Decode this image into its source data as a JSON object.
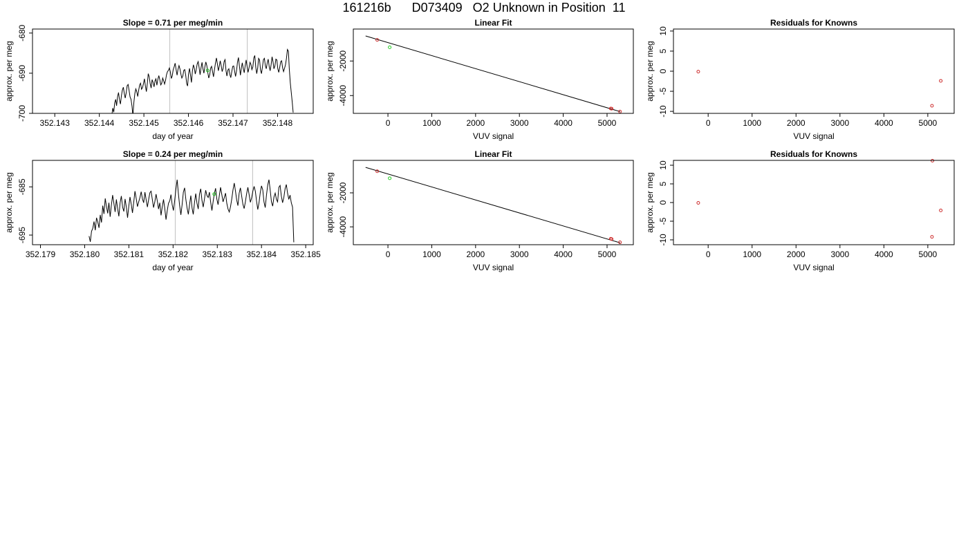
{
  "title": "161216b      D073409   O2 Unknown in Position  11",
  "chart_data": [
    {
      "type": "line",
      "title": "Slope =  0.71  per meg/min",
      "xlabel": "day of year",
      "ylabel": "approx. per meg",
      "xlim": [
        352.1425,
        352.1488
      ],
      "ylim": [
        -700,
        -679
      ],
      "xticks": [
        "352.143",
        "352.144",
        "352.145",
        "352.146",
        "352.147",
        "352.148"
      ],
      "yticks": [
        "-700",
        "-690",
        "-680"
      ],
      "vlines": [
        352.14558,
        352.14732
      ],
      "trace": {
        "x_start": 352.14428,
        "x_end": 352.14835,
        "values": [
          -700.5,
          -698.7,
          -699.7,
          -697.4,
          -696.5,
          -698.1,
          -695.9,
          -694.8,
          -696.6,
          -697.7,
          -695.6,
          -694.2,
          -693.5,
          -695.1,
          -696.2,
          -694.9,
          -693.1,
          -692.8,
          -694.3,
          -695.9,
          -696.5,
          -698.2,
          -700.6,
          -697.3,
          -695.1,
          -693.9,
          -694.6,
          -695.8,
          -694.2,
          -692.9,
          -692.5,
          -694.0,
          -693.6,
          -692.6,
          -691.4,
          -693.2,
          -694.6,
          -692.6,
          -690.1,
          -690.9,
          -692.6,
          -693.7,
          -691.6,
          -692.3,
          -693.4,
          -691.9,
          -691.4,
          -693.0,
          -691.5,
          -690.6,
          -691.6,
          -692.9,
          -692.5,
          -691.2,
          -691.9,
          -692.7,
          -691.8,
          -690.4,
          -689.6,
          -689.3,
          -688.7,
          -689.7,
          -691.3,
          -690.7,
          -689.1,
          -688.4,
          -687.5,
          -689.1,
          -690.5,
          -689.0,
          -688.1,
          -688.9,
          -690.2,
          -691.2,
          -690.7,
          -689.3,
          -689.1,
          -690.5,
          -692.6,
          -693.2,
          -690.2,
          -688.8,
          -690.5,
          -692.3,
          -689.4,
          -687.9,
          -688.8,
          -690.2,
          -689.1,
          -687.7,
          -687.1,
          -688.6,
          -690.4,
          -688.6,
          -687.3,
          -688.9,
          -690.0,
          -688.4,
          -687.2,
          -688.1,
          -689.8,
          -691.2,
          -690.4,
          -688.7,
          -688.3,
          -689.6,
          -690.9,
          -689.1,
          -687.5,
          -686.2,
          -687.7,
          -689.4,
          -688.3,
          -686.9,
          -688.1,
          -689.6,
          -688.8,
          -687.1,
          -686.6,
          -689.4,
          -690.7,
          -689.2,
          -688.9,
          -690.3,
          -691.1,
          -689.6,
          -688.3,
          -688.2,
          -689.5,
          -690.8,
          -689.4,
          -687.2,
          -686.1,
          -688.3,
          -690.5,
          -688.7,
          -687.4,
          -688.8,
          -689.9,
          -688.1,
          -686.7,
          -688.4,
          -689.8,
          -688.6,
          -687.3,
          -687.8,
          -689.1,
          -688.4,
          -686.2,
          -685.6,
          -688.5,
          -690.1,
          -688.7,
          -686.3,
          -686.7,
          -689.2,
          -690.1,
          -688.4,
          -686.6,
          -686.3,
          -688.2,
          -688.9,
          -687.4,
          -686.5,
          -688.3,
          -689.4,
          -687.9,
          -685.9,
          -687.2,
          -688.9,
          -688.2,
          -686.5,
          -686.7,
          -688.9,
          -689.8,
          -688.5,
          -687.1,
          -686.9,
          -688.6,
          -689.6,
          -688.8,
          -687.9,
          -686.3,
          -684.1,
          -684.5,
          -688.9,
          -692.3,
          -694.7,
          -697.1,
          -699.8
        ]
      },
      "unknown_point": [
        352.14643,
        -689.3
      ]
    },
    {
      "type": "scatter",
      "title": "Linear Fit",
      "xlabel": "VUV signal",
      "ylabel": "approx. per meg",
      "xlim": [
        -790,
        5600
      ],
      "ylim": [
        -5030,
        -150
      ],
      "xticks": [
        "0",
        "1000",
        "2000",
        "3000",
        "4000",
        "5000"
      ],
      "yticks": [
        "-4000",
        "-2000"
      ],
      "fit_line": {
        "x": [
          -510,
          5300
        ],
        "y": [
          -550,
          -4930
        ]
      },
      "knowns": [
        {
          "x": -245,
          "y": -780
        },
        {
          "x": 5085,
          "y": -4750
        },
        {
          "x": 5105,
          "y": -4760
        },
        {
          "x": 5295,
          "y": -4925
        }
      ],
      "unknowns": [
        {
          "x": 40,
          "y": -1205
        }
      ]
    },
    {
      "type": "scatter",
      "title": "Residuals for Knowns",
      "xlabel": "VUV signal",
      "ylabel": "approx. per meg",
      "xlim": [
        -790,
        5600
      ],
      "ylim": [
        -10.5,
        10.5
      ],
      "xticks": [
        "0",
        "1000",
        "2000",
        "3000",
        "4000",
        "5000"
      ],
      "yticks": [
        "-10",
        "-5",
        "0",
        "5",
        "10"
      ],
      "knowns": [
        {
          "x": -225,
          "y": -0.1
        },
        {
          "x": 5095,
          "y": -8.6
        },
        {
          "x": 5295,
          "y": -2.4
        }
      ]
    },
    {
      "type": "line",
      "title": "Slope =  0.24  per meg/min",
      "xlabel": "day of year",
      "ylabel": "approx. per meg",
      "xlim": [
        352.17882,
        352.18517
      ],
      "ylim": [
        -697.0,
        -679.5
      ],
      "xticks": [
        "352.179",
        "352.180",
        "352.181",
        "352.182",
        "352.183",
        "352.184",
        "352.185"
      ],
      "yticks": [
        "-695",
        "-685"
      ],
      "vlines": [
        352.18205,
        352.1838
      ],
      "trace": {
        "x_start": 352.1801,
        "x_end": 352.18473,
        "values": [
          -695.2,
          -696.4,
          -694.2,
          -693.6,
          -692.2,
          -694.0,
          -691.4,
          -692.3,
          -693.5,
          -690.8,
          -692.4,
          -688.9,
          -690.6,
          -687.4,
          -689.1,
          -690.5,
          -688.3,
          -691.2,
          -688.8,
          -686.7,
          -688.4,
          -690.2,
          -687.6,
          -689.5,
          -691.1,
          -688.3,
          -686.9,
          -689.2,
          -690.1,
          -687.5,
          -689.2,
          -691.4,
          -689.0,
          -687.1,
          -688.6,
          -690.4,
          -688.2,
          -685.9,
          -687.4,
          -689.1,
          -688.1,
          -687.2,
          -686.0,
          -687.5,
          -688.3,
          -686.1,
          -687.7,
          -689.2,
          -687.6,
          -686.2,
          -685.9,
          -687.6,
          -689.3,
          -688.1,
          -686.5,
          -687.9,
          -689.6,
          -688.3,
          -690.9,
          -689.1,
          -687.6,
          -689.5,
          -691.8,
          -689.9,
          -688.4,
          -687.9,
          -686.6,
          -688.7,
          -689.9,
          -687.9,
          -685.5,
          -683.5,
          -686.4,
          -688.9,
          -690.8,
          -688.7,
          -686.1,
          -685.2,
          -687.6,
          -689.4,
          -690.7,
          -688.6,
          -686.8,
          -689.4,
          -690.7,
          -688.3,
          -686.4,
          -688.4,
          -689.6,
          -686.5,
          -685.4,
          -687.8,
          -689.2,
          -687.5,
          -685.7,
          -686.8,
          -687.2,
          -686.1,
          -688.2,
          -689.9,
          -688.0,
          -686.4,
          -685.3,
          -687.5,
          -688.7,
          -686.8,
          -685.1,
          -686.6,
          -688.1,
          -687.2,
          -686.3,
          -688.4,
          -689.6,
          -690.2,
          -689.1,
          -687.5,
          -685.6,
          -684.2,
          -685.8,
          -687.7,
          -688.9,
          -686.3,
          -685.2,
          -686.9,
          -688.6,
          -689.5,
          -688.1,
          -686.4,
          -685.1,
          -686.6,
          -688.2,
          -687.3,
          -685.9,
          -684.9,
          -685.9,
          -687.9,
          -689.7,
          -688.3,
          -686.2,
          -684.8,
          -685.6,
          -688.1,
          -689.3,
          -686.7,
          -684.6,
          -683.5,
          -685.7,
          -688.1,
          -689.0,
          -687.1,
          -686.3,
          -687.6,
          -688.1,
          -685.1,
          -684.7,
          -686.9,
          -688.3,
          -687.2,
          -685.4,
          -684.5,
          -686.3,
          -687.6,
          -686.7,
          -688.3,
          -689.2,
          -696.5
        ]
      },
      "unknown_point": [
        352.18293,
        -686.5
      ]
    },
    {
      "type": "scatter",
      "title": "Linear Fit",
      "xlabel": "VUV signal",
      "ylabel": "approx. per meg",
      "xlim": [
        -790,
        5600
      ],
      "ylim": [
        -5050,
        -90
      ],
      "xticks": [
        "0",
        "1000",
        "2000",
        "3000",
        "4000",
        "5000"
      ],
      "yticks": [
        "-4000",
        "-2000"
      ],
      "fit_line": {
        "x": [
          -510,
          5300
        ],
        "y": [
          -500,
          -4940
        ]
      },
      "knowns": [
        {
          "x": -245,
          "y": -730
        },
        {
          "x": 5085,
          "y": -4700
        },
        {
          "x": 5105,
          "y": -4720
        },
        {
          "x": 5295,
          "y": -4910
        }
      ],
      "unknowns": [
        {
          "x": 40,
          "y": -1140
        }
      ]
    },
    {
      "type": "scatter",
      "title": "Residuals for Knowns",
      "xlabel": "VUV signal",
      "ylabel": "approx. per meg",
      "xlim": [
        -790,
        5600
      ],
      "ylim": [
        -11.3,
        11.3
      ],
      "xticks": [
        "0",
        "1000",
        "2000",
        "3000",
        "4000",
        "5000"
      ],
      "yticks": [
        "-10",
        "-5",
        "0",
        "5",
        "10"
      ],
      "knowns": [
        {
          "x": -225,
          "y": -0.1
        },
        {
          "x": 5095,
          "y": -9.2
        },
        {
          "x": 5105,
          "y": 11.2
        },
        {
          "x": 5295,
          "y": -2.1
        }
      ]
    }
  ],
  "colors": {
    "trace": "#000000",
    "known": "#cc2a2a",
    "unknown": "#22cc22",
    "vline": "#c8c8c8",
    "axis": "#000000"
  }
}
